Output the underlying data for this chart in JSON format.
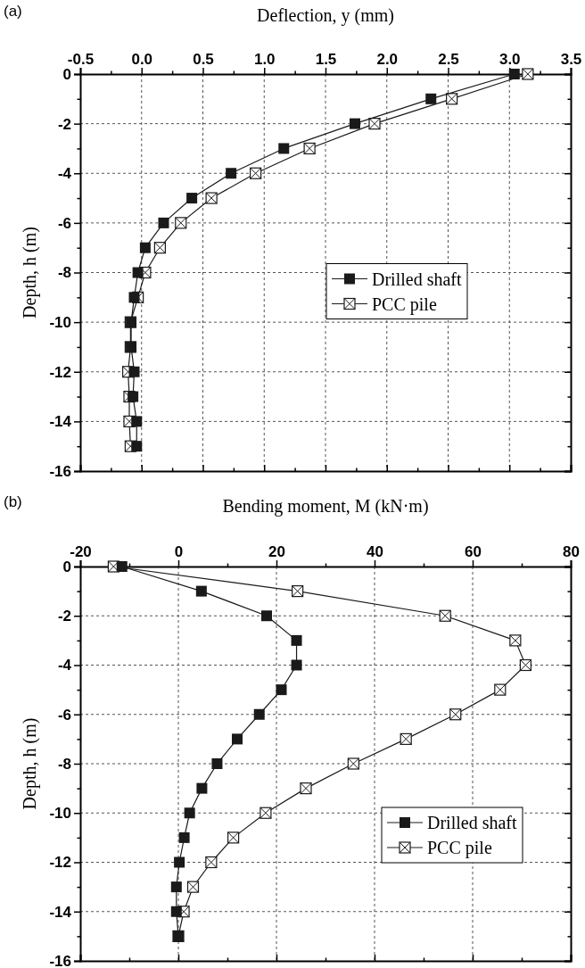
{
  "chart_data": [
    {
      "type": "line",
      "orientation": "horizontal",
      "xlabel": "Deflection, y (mm)",
      "ylabel": "Depth, h (m)",
      "annotations": [
        "(a)"
      ],
      "x": [
        0,
        -1,
        -2,
        -3,
        -4,
        -5,
        -6,
        -7,
        -8,
        -9,
        -10,
        -11,
        -12,
        -13,
        -14,
        -15
      ],
      "series": [
        {
          "name": "Drilled shaft",
          "color": "#1a1a1a",
          "marker": "square",
          "values": [
            3.04,
            2.36,
            1.74,
            1.16,
            0.73,
            0.41,
            0.18,
            0.03,
            -0.03,
            -0.06,
            -0.085,
            -0.085,
            -0.06,
            -0.07,
            -0.04,
            -0.04
          ]
        },
        {
          "name": "PCC pile",
          "color": "#1a1a1a",
          "marker": "square",
          "values": [
            3.15,
            2.53,
            1.9,
            1.37,
            0.93,
            0.57,
            0.32,
            0.15,
            0.03,
            -0.03,
            -0.09,
            -0.09,
            -0.11,
            -0.1,
            -0.1,
            -0.09
          ]
        }
      ],
      "xlim": [
        -0.5,
        3.5
      ],
      "xticks": [
        -0.5,
        {
          "value": -0.25,
          "label": null
        },
        "0.0",
        {
          "value": 0.25,
          "label": null
        },
        0.5,
        {
          "value": 0.75,
          "label": null
        },
        "1.0",
        {
          "value": 1.25,
          "label": null
        },
        1.5,
        {
          "value": 1.75,
          "label": null
        },
        "2.0",
        {
          "value": 2.25,
          "label": null
        },
        2.5,
        {
          "value": 2.75,
          "label": null
        },
        "3.0",
        {
          "value": 3.25,
          "label": null
        },
        3.5
      ],
      "yticks": [
        0,
        {
          "value": -1,
          "label": null
        },
        -2,
        {
          "value": -3,
          "label": null
        },
        -4,
        {
          "value": -5,
          "label": null
        },
        -6,
        {
          "value": -7,
          "label": null
        },
        -8,
        {
          "value": -9,
          "label": null
        },
        -10,
        {
          "value": -11,
          "label": null
        },
        -12,
        {
          "value": -13,
          "label": null
        },
        -14,
        {
          "value": -15,
          "label": null
        },
        -16
      ],
      "grid": true,
      "legend": "right",
      "line_style": "solid",
      "ylim": [
        -16,
        0
      ]
    },
    {
      "type": "line",
      "orientation": "horizontal",
      "xlabel": "Bending moment, M (kN·m)",
      "ylabel": "Depth, h (m)",
      "annotations": [
        "(b)"
      ],
      "x": [
        0,
        -1,
        -2,
        -3,
        -4,
        -5,
        -6,
        -7,
        -8,
        -9,
        -10,
        -11,
        -12,
        -13,
        -14,
        -15
      ],
      "series": [
        {
          "name": "Drilled shaft",
          "color": "#1a1a1a",
          "marker": "square",
          "values": [
            -11.5,
            4.7,
            18,
            24.1,
            24.1,
            21,
            16.5,
            12,
            7.9,
            4.8,
            2.3,
            1.2,
            0.2,
            -0.4,
            -0.4,
            0
          ]
        },
        {
          "name": "PCC pile",
          "color": "#1a1a1a",
          "marker": "square",
          "values": [
            -13.2,
            24.3,
            54.4,
            68.7,
            70.8,
            65.6,
            56.5,
            46.4,
            35.7,
            26,
            17.8,
            11.2,
            6.7,
            3,
            1.1,
            0
          ]
        }
      ],
      "xlim": [
        -20,
        80
      ],
      "xticks": [
        -20,
        {
          "value": -10,
          "label": null
        },
        0,
        {
          "value": 10,
          "label": null
        },
        20,
        {
          "value": 30,
          "label": null
        },
        40,
        {
          "value": 50,
          "label": null
        },
        60,
        {
          "value": 70,
          "label": null
        },
        80
      ],
      "yticks": [
        0,
        {
          "value": -1,
          "label": null
        },
        -2,
        {
          "value": -3,
          "label": null
        },
        -4,
        {
          "value": -5,
          "label": null
        },
        -6,
        {
          "value": -7,
          "label": null
        },
        -8,
        {
          "value": -9,
          "label": null
        },
        -10,
        {
          "value": -11,
          "label": null
        },
        -12,
        {
          "value": -13,
          "label": null
        },
        -14,
        {
          "value": -15,
          "label": null
        },
        -16
      ],
      "grid": true,
      "legend": "bottom right",
      "line_style": "solid",
      "ylim": [
        -16,
        0
      ]
    }
  ]
}
